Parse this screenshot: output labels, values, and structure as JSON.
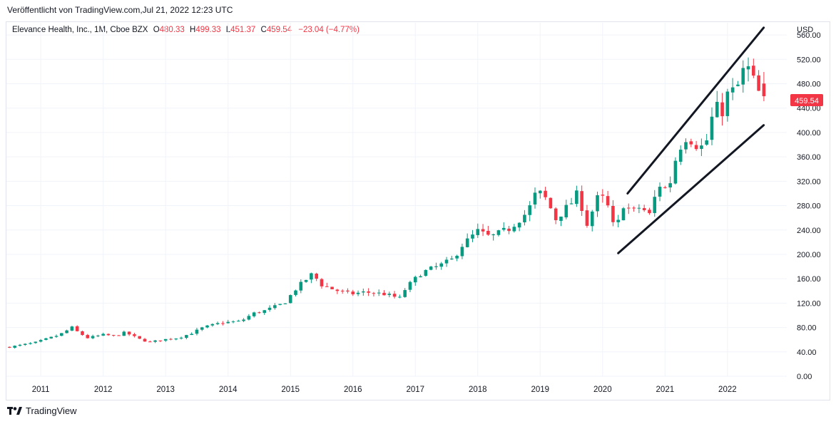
{
  "caption": "Veröffentlicht von TradingView.com,Jul 21, 2022 12:23 UTC",
  "legend": {
    "symbol": "Elevance Health, Inc., 1M, Cboe BZX",
    "open_label": "O",
    "open": "480.33",
    "high_label": "H",
    "high": "499.33",
    "low_label": "L",
    "low": "451.37",
    "close_label": "C",
    "close": "459.54",
    "change": "−23.04 (−4.77%)"
  },
  "price_badge": "459.54",
  "currency": "USD",
  "brand": "TradingView",
  "colors": {
    "up": "#089981",
    "down": "#f23645",
    "grid": "#f0f3fa",
    "text": "#131722",
    "trendline": "#131722"
  },
  "chart_data": {
    "type": "candlestick",
    "interval": "1M",
    "x_range": [
      2010.45,
      2022.95
    ],
    "ylim": [
      0,
      580
    ],
    "y_ticks": [
      "0.00",
      "40.00",
      "80.00",
      "120.00",
      "160.00",
      "200.00",
      "240.00",
      "280.00",
      "320.00",
      "360.00",
      "400.00",
      "440.00",
      "480.00",
      "520.00",
      "560.00"
    ],
    "x_ticks": [
      "2011",
      "2012",
      "2013",
      "2014",
      "2015",
      "2016",
      "2017",
      "2018",
      "2019",
      "2020",
      "2021",
      "2022"
    ],
    "anchors": [
      [
        2010.5,
        48
      ],
      [
        2010.9,
        55
      ],
      [
        2011.3,
        68
      ],
      [
        2011.5,
        80
      ],
      [
        2011.6,
        72
      ],
      [
        2011.75,
        63
      ],
      [
        2012.0,
        68
      ],
      [
        2012.2,
        66
      ],
      [
        2012.35,
        72
      ],
      [
        2012.6,
        60
      ],
      [
        2012.75,
        56
      ],
      [
        2012.95,
        60
      ],
      [
        2013.2,
        63
      ],
      [
        2013.4,
        70
      ],
      [
        2013.6,
        80
      ],
      [
        2013.9,
        88
      ],
      [
        2014.2,
        90
      ],
      [
        2014.4,
        103
      ],
      [
        2014.6,
        108
      ],
      [
        2014.9,
        120
      ],
      [
        2015.1,
        145
      ],
      [
        2015.35,
        168
      ],
      [
        2015.5,
        150
      ],
      [
        2015.7,
        142
      ],
      [
        2015.95,
        135
      ],
      [
        2016.2,
        138
      ],
      [
        2016.5,
        135
      ],
      [
        2016.75,
        128
      ],
      [
        2016.85,
        145
      ],
      [
        2017.1,
        170
      ],
      [
        2017.4,
        182
      ],
      [
        2017.6,
        192
      ],
      [
        2017.75,
        215
      ],
      [
        2018.0,
        238
      ],
      [
        2018.2,
        228
      ],
      [
        2018.5,
        242
      ],
      [
        2018.8,
        270
      ],
      [
        2018.95,
        305
      ],
      [
        2019.1,
        290
      ],
      [
        2019.25,
        258
      ],
      [
        2019.5,
        285
      ],
      [
        2019.6,
        300
      ],
      [
        2019.75,
        250
      ],
      [
        2019.95,
        300
      ],
      [
        2020.1,
        275
      ],
      [
        2020.2,
        235
      ],
      [
        2020.35,
        288
      ],
      [
        2020.45,
        268
      ],
      [
        2020.6,
        278
      ],
      [
        2020.75,
        265
      ],
      [
        2020.9,
        315
      ],
      [
        2021.05,
        305
      ],
      [
        2021.2,
        370
      ],
      [
        2021.35,
        395
      ],
      [
        2021.55,
        375
      ],
      [
        2021.65,
        380
      ],
      [
        2021.8,
        445
      ],
      [
        2021.9,
        430
      ],
      [
        2022.0,
        462
      ],
      [
        2022.15,
        472
      ],
      [
        2022.25,
        500
      ],
      [
        2022.35,
        505
      ],
      [
        2022.45,
        475
      ],
      [
        2022.53,
        459.54
      ]
    ],
    "trendlines": [
      {
        "from": [
          2020.25,
          202
        ],
        "to": [
          2022.58,
          412
        ]
      },
      {
        "from": [
          2020.4,
          300
        ],
        "to": [
          2022.58,
          572
        ]
      }
    ]
  }
}
